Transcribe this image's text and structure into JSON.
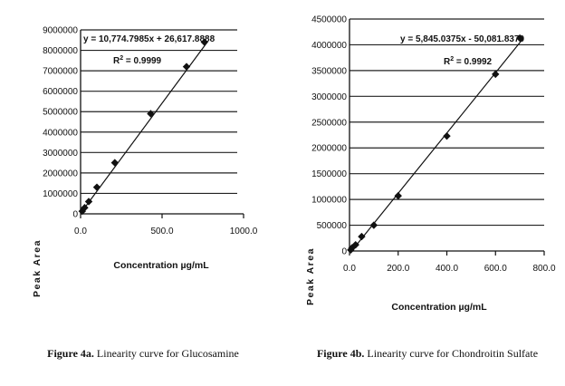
{
  "chart_data": [
    {
      "type": "scatter",
      "title": "",
      "xlabel": "Concentration µg/mL",
      "ylabel": "Peak Area",
      "xlim": [
        0,
        1000
      ],
      "ylim": [
        0,
        9000000
      ],
      "x_ticks": [
        "0.0",
        "500.0",
        "1000.0"
      ],
      "y_ticks": [
        "0",
        "1000000",
        "2000000",
        "3000000",
        "4000000",
        "5000000",
        "6000000",
        "7000000",
        "8000000",
        "9000000"
      ],
      "grid": "horizontal",
      "series": [
        {
          "points": [
            [
              10,
              130000
            ],
            [
              25,
              300000
            ],
            [
              50,
              600000
            ],
            [
              100,
              1300000
            ],
            [
              210,
              2500000
            ],
            [
              430,
              4900000
            ],
            [
              650,
              7200000
            ],
            [
              760,
              8400000
            ]
          ]
        }
      ],
      "trendline": {
        "slope": 10774.7985,
        "intercept": 26617.8888
      },
      "equation": "y = 10,774.7985x + 26,617.8888",
      "r2_label": "R",
      "r2_value": "= 0.9999"
    },
    {
      "type": "scatter",
      "title": "",
      "xlabel": "Concentration µg/mL",
      "ylabel": "Peak Area",
      "xlim": [
        0,
        800
      ],
      "ylim": [
        0,
        4500000
      ],
      "x_ticks": [
        "0.0",
        "200.0",
        "400.0",
        "600.0",
        "800.0"
      ],
      "y_ticks": [
        "0",
        "500000",
        "1000000",
        "1500000",
        "2000000",
        "2500000",
        "3000000",
        "3500000",
        "4000000",
        "4500000"
      ],
      "grid": "horizontal",
      "series": [
        {
          "points": [
            [
              5,
              20000
            ],
            [
              10,
              60000
            ],
            [
              25,
              120000
            ],
            [
              50,
              280000
            ],
            [
              100,
              500000
            ],
            [
              200,
              1070000
            ],
            [
              400,
              2230000
            ],
            [
              600,
              3430000
            ],
            [
              700,
              4130000
            ]
          ]
        }
      ],
      "trendline": {
        "slope": 5845.0375,
        "intercept": -50081.837
      },
      "equation": "y = 5,845.0375x - 50,081.8370",
      "r2_label": "R",
      "r2_value": "= 0.9992"
    }
  ],
  "captions": [
    {
      "label": "Figure 4a.",
      "text": " Linearity curve for Glucosamine"
    },
    {
      "label": "Figure 4b.",
      "text": " Linearity curve for Chondroitin Sulfate"
    }
  ],
  "colors": {
    "ink": "#111111",
    "grid": "#222222"
  }
}
